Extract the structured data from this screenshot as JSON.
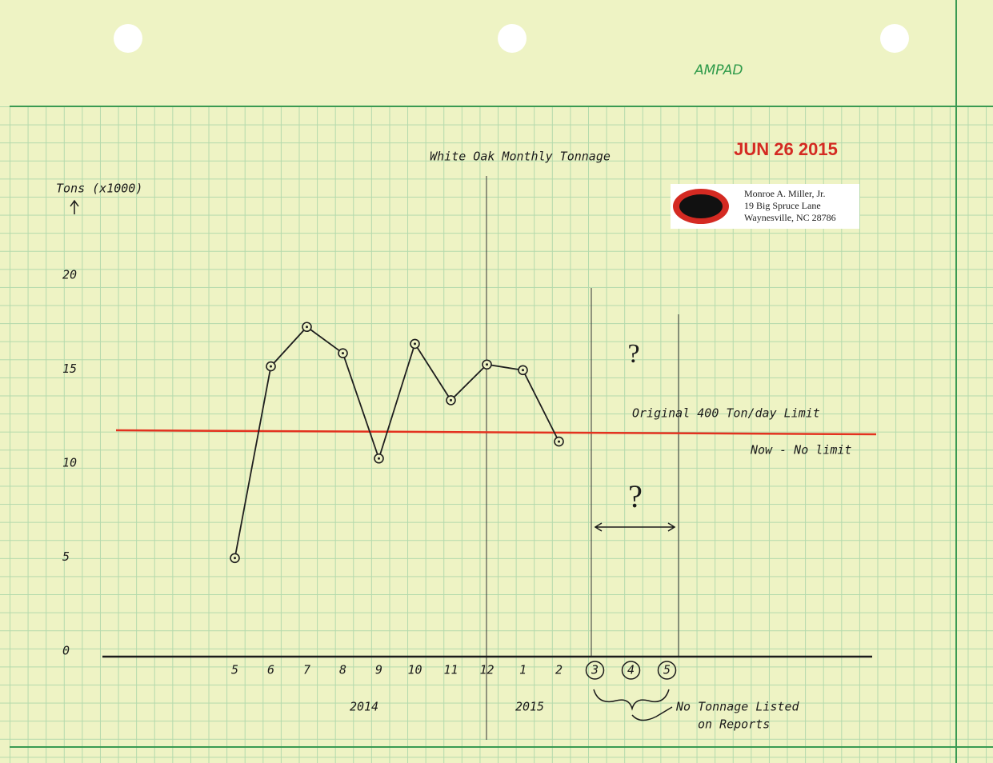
{
  "chart_data": {
    "type": "line",
    "title": "White Oak Monthly Tonnage",
    "y_label": "Tons (x1000)",
    "categories": [
      "5",
      "6",
      "7",
      "8",
      "9",
      "10",
      "11",
      "12",
      "1",
      "2",
      "3",
      "4",
      "5"
    ],
    "values": [
      5.2,
      15.4,
      17.5,
      16.1,
      10.5,
      16.6,
      13.6,
      15.5,
      15.2,
      11.4,
      null,
      null,
      null
    ],
    "color": "#1f1f1f",
    "ylim": [
      0,
      20
    ],
    "yticks": [
      0,
      5,
      10,
      15,
      20
    ],
    "years": [
      "2014",
      "2015"
    ],
    "reference_line": {
      "value": 12,
      "color": "#e3321f"
    },
    "annotations": {
      "limit_label": "Original 400 Ton/day Limit",
      "no_limit": "Now - No limit",
      "questions": [
        "?",
        "?"
      ],
      "missing_note": [
        "No Tonnage Listed",
        "on Reports"
      ],
      "stamp": "JUN 26 2015",
      "logo": "AMPAD",
      "address": [
        "Monroe A. Miller, Jr.",
        "19 Big Spruce Lane",
        "Waynesville, NC 28786"
      ]
    }
  }
}
